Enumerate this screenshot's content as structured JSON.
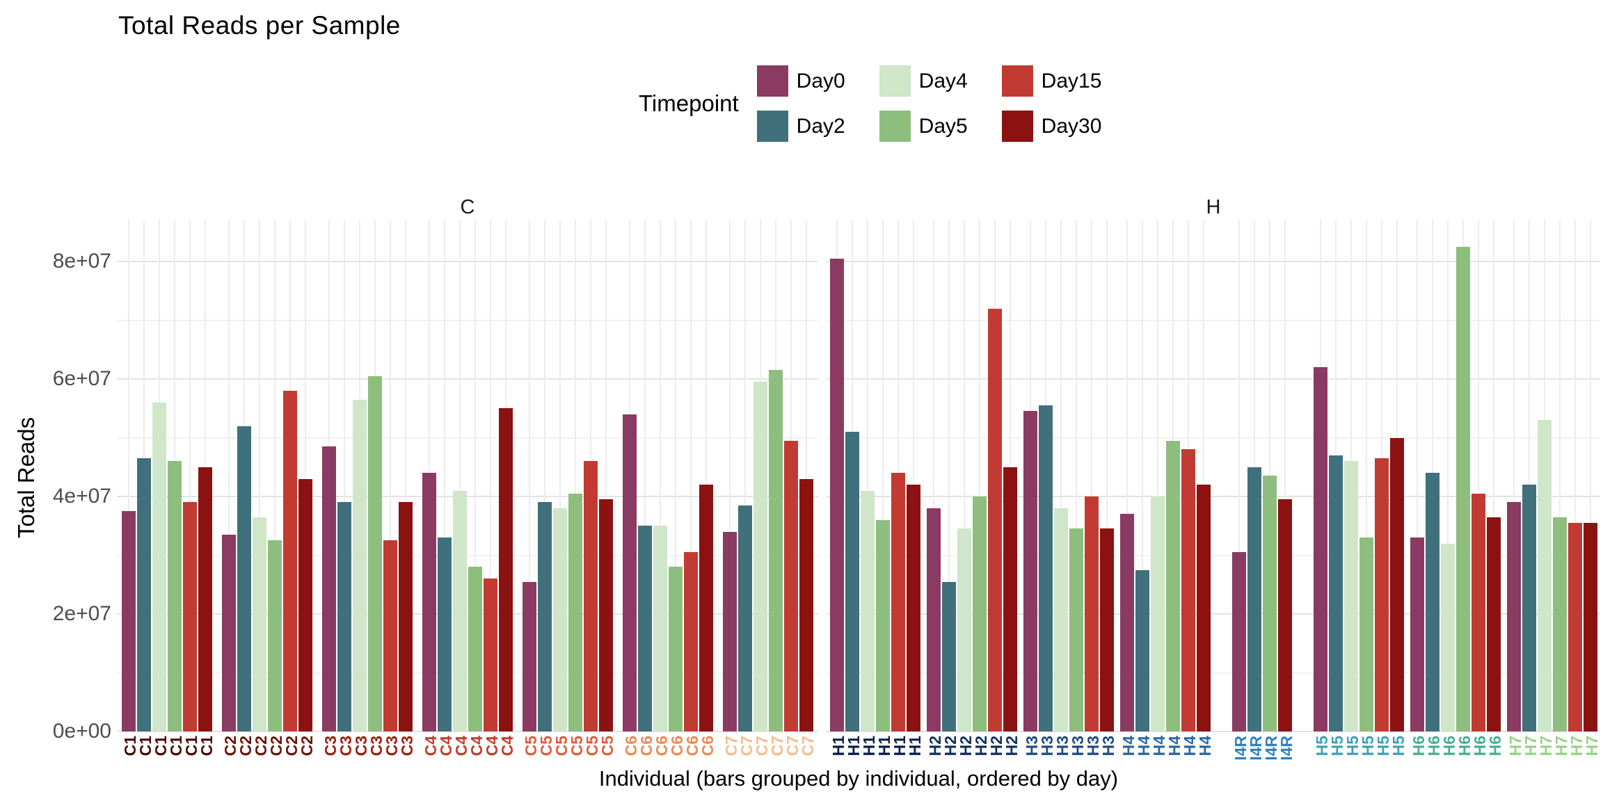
{
  "title": "Total Reads per Sample",
  "legend": {
    "title": "Timepoint",
    "items": [
      {
        "label": "Day0",
        "color": "#8B3A62"
      },
      {
        "label": "Day2",
        "color": "#3F707B"
      },
      {
        "label": "Day4",
        "color": "#CFE6C9"
      },
      {
        "label": "Day5",
        "color": "#8EBE7D"
      },
      {
        "label": "Day15",
        "color": "#C13B33"
      },
      {
        "label": "Day30",
        "color": "#8B1210"
      }
    ]
  },
  "y_axis": {
    "title": "Total Reads",
    "ticks": [
      {
        "label": "0e+00",
        "value": 0
      },
      {
        "label": "2e+07",
        "value": 20000000
      },
      {
        "label": "4e+07",
        "value": 40000000
      },
      {
        "label": "6e+07",
        "value": 60000000
      },
      {
        "label": "8e+07",
        "value": 80000000
      }
    ],
    "minor_gridlines": [
      10000000,
      30000000,
      50000000,
      70000000
    ]
  },
  "x_axis": {
    "title": "Individual (bars grouped by individual, ordered by day)"
  },
  "chart_data": {
    "type": "bar",
    "title": "Total Reads per Sample",
    "xlabel": "Individual (bars grouped by individual, ordered by day)",
    "ylabel": "Total Reads",
    "ylim": [
      0,
      87000000
    ],
    "grid": true,
    "legend_position": "top-center",
    "grid_major_color": "#E3E3E3",
    "grid_minor_color": "#F1F1F1",
    "timepoint_colors": {
      "Day0": "#8B3A62",
      "Day2": "#3F707B",
      "Day4": "#CFE6C9",
      "Day5": "#8EBE7D",
      "Day15": "#C13B33",
      "Day30": "#8B1210"
    },
    "facets": [
      {
        "label": "C",
        "individuals": [
          {
            "name": "C1",
            "label_color": "#460B05",
            "values": {
              "Day0": 37500000,
              "Day2": 46500000,
              "Day4": 56000000,
              "Day5": 46000000,
              "Day15": 39000000,
              "Day30": 45000000
            }
          },
          {
            "name": "C2",
            "label_color": "#6E1309",
            "values": {
              "Day0": 33500000,
              "Day2": 52000000,
              "Day4": 36500000,
              "Day5": 32500000,
              "Day15": 58000000,
              "Day30": 43000000
            }
          },
          {
            "name": "C3",
            "label_color": "#9A1E0E",
            "values": {
              "Day0": 48500000,
              "Day2": 39000000,
              "Day4": 56500000,
              "Day5": 60500000,
              "Day15": 32500000,
              "Day30": 39000000
            }
          },
          {
            "name": "C4",
            "label_color": "#C43C28",
            "values": {
              "Day0": 44000000,
              "Day2": 33000000,
              "Day4": 41000000,
              "Day5": 28000000,
              "Day15": 26000000,
              "Day30": 55000000
            }
          },
          {
            "name": "C5",
            "label_color": "#DE5E3B",
            "values": {
              "Day0": 25500000,
              "Day2": 39000000,
              "Day4": 38000000,
              "Day5": 40500000,
              "Day15": 46000000,
              "Day30": 39500000
            }
          },
          {
            "name": "C6",
            "label_color": "#EC8A52",
            "values": {
              "Day0": 54000000,
              "Day2": 35000000,
              "Day4": 35000000,
              "Day5": 28000000,
              "Day15": 30500000,
              "Day30": 42000000
            }
          },
          {
            "name": "C7",
            "label_color": "#F5BD8D",
            "values": {
              "Day0": 34000000,
              "Day2": 38500000,
              "Day4": 59500000,
              "Day5": 61500000,
              "Day15": 49500000,
              "Day30": 43000000
            }
          }
        ]
      },
      {
        "label": "H",
        "individuals": [
          {
            "name": "H1",
            "label_color": "#0B1E4B",
            "values": {
              "Day0": 80500000,
              "Day2": 51000000,
              "Day4": 41000000,
              "Day5": 36000000,
              "Day15": 44000000,
              "Day30": 42000000
            }
          },
          {
            "name": "H2",
            "label_color": "#15305F",
            "values": {
              "Day0": 38000000,
              "Day2": 25500000,
              "Day4": 34500000,
              "Day5": 40000000,
              "Day15": 72000000,
              "Day30": 45000000
            }
          },
          {
            "name": "H3",
            "label_color": "#204C86",
            "values": {
              "Day0": 54500000,
              "Day2": 55500000,
              "Day4": 38000000,
              "Day5": 34500000,
              "Day15": 40000000,
              "Day30": 34500000
            }
          },
          {
            "name": "H4",
            "label_color": "#2A67A3",
            "values": {
              "Day0": 37000000,
              "Day2": 27500000,
              "Day4": 40000000,
              "Day5": 49500000,
              "Day15": 48000000,
              "Day30": 42000000
            }
          },
          {
            "name": "I4R",
            "label_color": "#3380BC",
            "values": {
              "Day0": 30500000,
              "Day2": 45000000,
              "Day5": 43500000,
              "Day30": 39500000
            }
          },
          {
            "name": "H5",
            "label_color": "#3EA3B3",
            "values": {
              "Day0": 62000000,
              "Day2": 47000000,
              "Day4": 46000000,
              "Day5": 33000000,
              "Day15": 46500000,
              "Day30": 50000000
            }
          },
          {
            "name": "H6",
            "label_color": "#47AF92",
            "values": {
              "Day0": 33000000,
              "Day2": 44000000,
              "Day4": 32000000,
              "Day5": 82500000,
              "Day15": 40500000,
              "Day30": 36500000
            }
          },
          {
            "name": "H7",
            "label_color": "#99D285",
            "values": {
              "Day0": 39000000,
              "Day2": 42000000,
              "Day4": 53000000,
              "Day5": 36500000,
              "Day15": 35500000,
              "Day30": 35500000
            }
          }
        ]
      }
    ]
  }
}
